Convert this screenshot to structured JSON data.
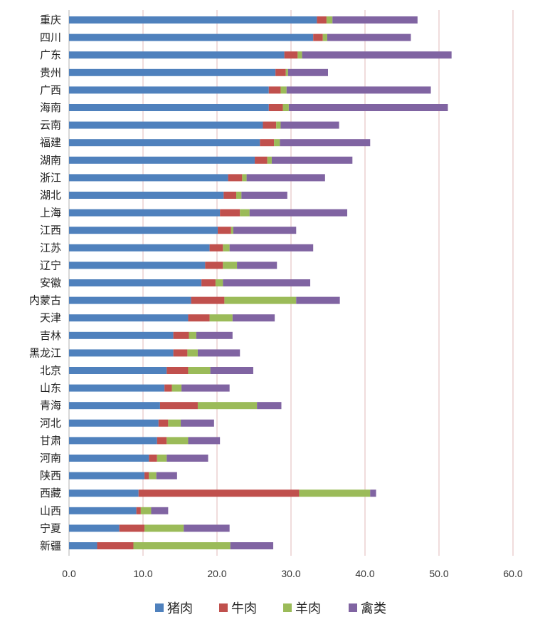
{
  "chart_data": {
    "type": "bar",
    "orientation": "horizontal",
    "stacked": true,
    "categories": [
      "重庆",
      "四川",
      "广东",
      "贵州",
      "广西",
      "海南",
      "云南",
      "福建",
      "湖南",
      "浙江",
      "湖北",
      "上海",
      "江西",
      "江苏",
      "辽宁",
      "安徽",
      "内蒙古",
      "天津",
      "吉林",
      "黑龙江",
      "北京",
      "山东",
      "青海",
      "河北",
      "甘肃",
      "河南",
      "陕西",
      "西藏",
      "山西",
      "宁夏",
      "新疆"
    ],
    "series": [
      {
        "name": "猪肉",
        "color": "#4f81bd",
        "values": [
          33.5,
          33.0,
          29.1,
          27.9,
          27.0,
          27.0,
          26.2,
          25.8,
          25.1,
          21.5,
          20.9,
          20.4,
          20.1,
          19.0,
          18.4,
          17.9,
          16.5,
          16.1,
          14.1,
          14.1,
          13.2,
          12.9,
          12.3,
          12.1,
          11.9,
          10.8,
          10.2,
          9.4,
          9.1,
          6.8,
          3.8
        ]
      },
      {
        "name": "牛肉",
        "color": "#c0504d",
        "values": [
          1.3,
          1.3,
          1.8,
          1.4,
          1.6,
          1.9,
          1.8,
          1.9,
          1.7,
          1.9,
          1.7,
          2.7,
          1.8,
          1.8,
          2.4,
          1.9,
          4.5,
          2.9,
          2.1,
          1.9,
          2.9,
          1.0,
          5.1,
          1.3,
          1.3,
          1.1,
          0.6,
          21.7,
          0.6,
          3.4,
          4.9
        ]
      },
      {
        "name": "羊肉",
        "color": "#9bbb59",
        "values": [
          0.8,
          0.6,
          0.6,
          0.3,
          0.8,
          0.8,
          0.6,
          0.8,
          0.6,
          0.6,
          0.7,
          1.3,
          0.3,
          0.9,
          1.9,
          1.0,
          9.7,
          3.1,
          1.0,
          1.4,
          3.0,
          1.3,
          8.0,
          1.7,
          2.9,
          1.3,
          1.0,
          9.6,
          1.4,
          5.3,
          13.1
        ]
      },
      {
        "name": "禽类",
        "color": "#8064a2",
        "values": [
          11.5,
          11.3,
          20.2,
          5.4,
          19.5,
          21.5,
          7.9,
          12.2,
          10.9,
          10.6,
          6.2,
          13.2,
          8.5,
          11.3,
          5.4,
          11.8,
          5.9,
          5.7,
          4.9,
          5.7,
          5.8,
          6.5,
          3.3,
          4.5,
          4.3,
          5.6,
          2.8,
          0.8,
          2.3,
          6.2,
          5.8
        ]
      }
    ],
    "xaxis": {
      "ticks": [
        "0.0",
        "10.0",
        "20.0",
        "30.0",
        "40.0",
        "50.0",
        "60.0"
      ],
      "range": [
        0,
        60
      ]
    },
    "grid": true,
    "legend_position": "bottom"
  }
}
